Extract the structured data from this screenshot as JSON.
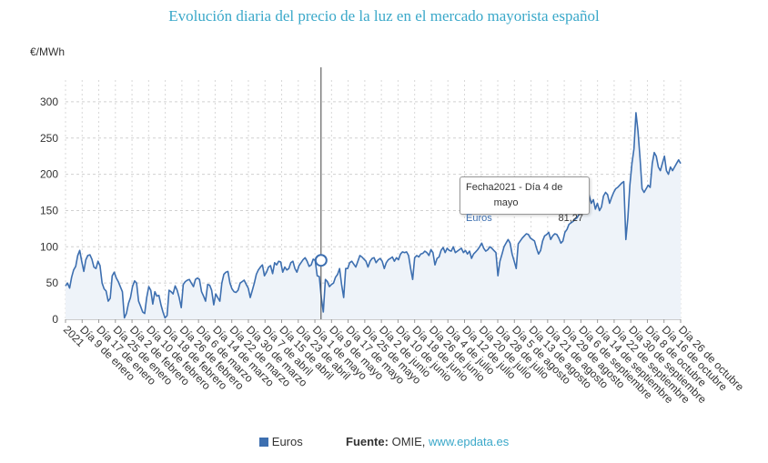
{
  "title": "Evolución diaria del precio de la luz en el mercado mayorista español",
  "legend": {
    "series_label": "Euros",
    "source_label": "Fuente:",
    "source_text": "OMIE,",
    "source_link": "www.epdata.es"
  },
  "tooltip": {
    "key1": "Fecha",
    "value1": "2021 - Día 4 de mayo",
    "key2": "Euros",
    "value2": "81,27"
  },
  "colors": {
    "line": "#3d6fb0",
    "fill": "#eef3f9",
    "title": "#3aa8c9"
  },
  "chart_data": {
    "type": "area",
    "title": "Evolución diaria del precio de la luz en el mercado mayorista español",
    "ylabel": "€/MWh",
    "xlabel": "",
    "ylim": [
      0,
      330
    ],
    "yticks": [
      0,
      50,
      100,
      150,
      200,
      250,
      300
    ],
    "grid": true,
    "legend_position": "bottom",
    "x_tick_labels": [
      "2021",
      "Día 9 de enero",
      "Día 17 de enero",
      "Día 25 de enero",
      "Día 2 de febrero",
      "Día 10 de febrero",
      "Día 18 de febrero",
      "Día 26 de febrero",
      "Día 6 de marzo",
      "Día 14 de marzo",
      "Día 22 de marzo",
      "Día 30 de marzo",
      "Día 7 de abril",
      "Día 15 de abril",
      "Día 23 de abril",
      "Día 1 de mayo",
      "Día 9 de mayo",
      "Día 17 de mayo",
      "Día 25 de mayo",
      "Día 2 de junio",
      "Día 10 de junio",
      "Día 18 de junio",
      "Día 26 de junio",
      "Día 4 de julio",
      "Día 12 de julio",
      "Día 20 de julio",
      "Día 28 de julio",
      "Día 5 de agosto",
      "Día 13 de agosto",
      "Día 21 de agosto",
      "Día 29 de agosto",
      "Día 6 de septiembre",
      "Día 14 de septiembre",
      "Día 22 de septiembre",
      "Día 30 de septiembre",
      "Día 8 de octubre",
      "Día 16 de octubre",
      "Día 26 de octubre"
    ],
    "highlight": {
      "date": "2021 - Día 4 de mayo",
      "value": 81.27
    },
    "series": [
      {
        "name": "Euros",
        "x_start": "2021-01-01",
        "x_end": "2021-10-26",
        "values": [
          46,
          50,
          43,
          58,
          68,
          73,
          88,
          95,
          80,
          66,
          82,
          88,
          89,
          83,
          72,
          70,
          80,
          74,
          50,
          42,
          39,
          25,
          29,
          60,
          65,
          57,
          52,
          45,
          38,
          2,
          8,
          22,
          30,
          45,
          53,
          50,
          25,
          18,
          10,
          8,
          30,
          45,
          40,
          21,
          38,
          32,
          33,
          20,
          10,
          2,
          5,
          40,
          38,
          35,
          46,
          40,
          30,
          16,
          48,
          52,
          54,
          55,
          50,
          45,
          55,
          57,
          55,
          38,
          32,
          25,
          48,
          47,
          40,
          20,
          35,
          30,
          25,
          50,
          62,
          65,
          66,
          50,
          42,
          38,
          37,
          40,
          50,
          52,
          54,
          48,
          43,
          30,
          40,
          50,
          62,
          68,
          72,
          75,
          60,
          65,
          72,
          74,
          63,
          78,
          75,
          80,
          79,
          65,
          72,
          68,
          70,
          78,
          80,
          70,
          65,
          74,
          78,
          82,
          85,
          80,
          73,
          75,
          83,
          81,
          60,
          59,
          30,
          10,
          55,
          52,
          45,
          48,
          50,
          58,
          62,
          70,
          48,
          30,
          70,
          70,
          78,
          80,
          76,
          72,
          80,
          88,
          86,
          83,
          80,
          72,
          80,
          84,
          85,
          78,
          82,
          84,
          80,
          70,
          78,
          82,
          84,
          86,
          80,
          85,
          82,
          90,
          93,
          92,
          93,
          88,
          70,
          55,
          85,
          88,
          86,
          90,
          91,
          94,
          92,
          88,
          96,
          92,
          75,
          84,
          86,
          95,
          99,
          92,
          98,
          95,
          94,
          100,
          92,
          94,
          96,
          98,
          92,
          95,
          90,
          94,
          84,
          90,
          93,
          96,
          100,
          105,
          98,
          94,
          96,
          100,
          98,
          95,
          92,
          60,
          80,
          90,
          100,
          105,
          110,
          105,
          90,
          80,
          70,
          104,
          108,
          112,
          115,
          118,
          117,
          112,
          110,
          108,
          98,
          90,
          95,
          108,
          115,
          117,
          120,
          110,
          115,
          118,
          117,
          112,
          105,
          108,
          120,
          124,
          131,
          133,
          135,
          138,
          140,
          145,
          150,
          160,
          178,
          186,
          170,
          160,
          165,
          152,
          160,
          150,
          155,
          170,
          175,
          172,
          160,
          168,
          175,
          180,
          182,
          185,
          188,
          190,
          110,
          140,
          185,
          215,
          235,
          285,
          260,
          222,
          180,
          175,
          180,
          185,
          182,
          215,
          230,
          225,
          210,
          205,
          215,
          225,
          205,
          200,
          210,
          205,
          210,
          215,
          220,
          215
        ]
      }
    ]
  }
}
